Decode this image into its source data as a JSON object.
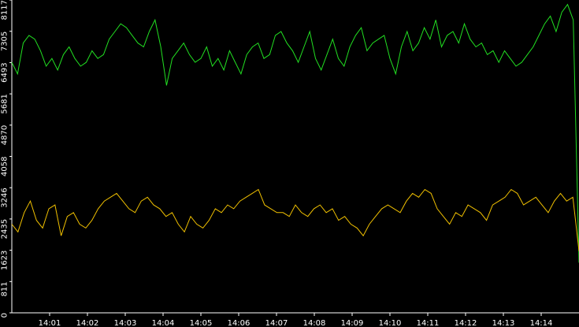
{
  "chart_data": {
    "type": "line",
    "ylim": [
      0,
      8117
    ],
    "yticks": [
      0,
      811,
      1623,
      2435,
      3246,
      4058,
      4870,
      5681,
      6493,
      7305,
      8117
    ],
    "xlim": [
      0,
      15
    ],
    "xticks": [
      {
        "value": 1,
        "label": "14:01"
      },
      {
        "value": 2,
        "label": "14:02"
      },
      {
        "value": 3,
        "label": "14:03"
      },
      {
        "value": 4,
        "label": "14:04"
      },
      {
        "value": 5,
        "label": "14:05"
      },
      {
        "value": 6,
        "label": "14:06"
      },
      {
        "value": 7,
        "label": "14:07"
      },
      {
        "value": 8,
        "label": "14:08"
      },
      {
        "value": 9,
        "label": "14:09"
      },
      {
        "value": 10,
        "label": "14:10"
      },
      {
        "value": 11,
        "label": "14:11"
      },
      {
        "value": 12,
        "label": "14:12"
      },
      {
        "value": 13,
        "label": "14:13"
      },
      {
        "value": 14,
        "label": "14:14"
      }
    ],
    "series": [
      {
        "color": "#22e022",
        "values": [
          6500,
          6200,
          7000,
          7200,
          7100,
          6800,
          6400,
          6600,
          6300,
          6700,
          6900,
          6600,
          6400,
          6500,
          6800,
          6600,
          6700,
          7100,
          7300,
          7500,
          7400,
          7200,
          7000,
          6900,
          7300,
          7600,
          6900,
          5900,
          6600,
          6800,
          7000,
          6700,
          6500,
          6600,
          6900,
          6400,
          6600,
          6300,
          6800,
          6500,
          6200,
          6700,
          6900,
          7000,
          6600,
          6700,
          7200,
          7300,
          7000,
          6800,
          6500,
          6900,
          7300,
          6600,
          6300,
          6700,
          7100,
          6600,
          6400,
          6900,
          7200,
          7400,
          6800,
          7000,
          7100,
          7200,
          6600,
          6200,
          6900,
          7300,
          6800,
          7000,
          7400,
          7100,
          7600,
          6900,
          7200,
          7300,
          7000,
          7500,
          7100,
          6900,
          7000,
          6700,
          6800,
          6500,
          6800,
          6600,
          6400,
          6500,
          6700,
          6900,
          7200,
          7500,
          7700,
          7300,
          7800,
          8000,
          7600,
          1300
        ]
      },
      {
        "color": "#f0c000",
        "values": [
          2300,
          2100,
          2600,
          2900,
          2400,
          2200,
          2700,
          2800,
          2000,
          2500,
          2600,
          2300,
          2200,
          2400,
          2700,
          2900,
          3000,
          3100,
          2900,
          2700,
          2600,
          2900,
          3000,
          2800,
          2700,
          2500,
          2600,
          2300,
          2100,
          2500,
          2300,
          2200,
          2400,
          2700,
          2600,
          2800,
          2700,
          2900,
          3000,
          3100,
          3200,
          2800,
          2700,
          2600,
          2600,
          2500,
          2800,
          2600,
          2500,
          2700,
          2800,
          2600,
          2700,
          2400,
          2500,
          2300,
          2200,
          2000,
          2300,
          2500,
          2700,
          2800,
          2700,
          2600,
          2900,
          3100,
          3000,
          3200,
          3100,
          2700,
          2500,
          2300,
          2600,
          2500,
          2800,
          2700,
          2600,
          2400,
          2800,
          2900,
          3000,
          3200,
          3100,
          2800,
          2900,
          3000,
          2800,
          2600,
          2900,
          3100,
          2900,
          3000,
          1600
        ]
      }
    ]
  }
}
